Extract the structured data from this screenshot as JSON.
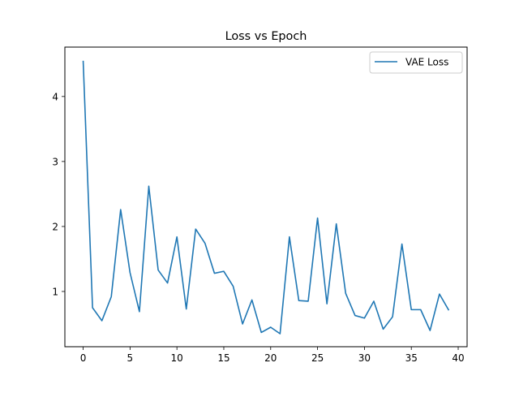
{
  "chart_data": {
    "type": "line",
    "title": "Loss vs Epoch",
    "xlabel": "",
    "ylabel": "",
    "xlim": [
      -1.95,
      40.95
    ],
    "ylim": [
      0.15,
      4.76
    ],
    "xticks": [
      0,
      5,
      10,
      15,
      20,
      25,
      30,
      35,
      40
    ],
    "yticks": [
      1,
      2,
      3,
      4
    ],
    "grid": false,
    "legend_position": "top-right",
    "series": [
      {
        "name": "VAE Loss",
        "color": "#1f77b4",
        "x": [
          0,
          1,
          2,
          3,
          4,
          5,
          6,
          7,
          8,
          9,
          10,
          11,
          12,
          13,
          14,
          15,
          16,
          17,
          18,
          19,
          20,
          21,
          22,
          23,
          24,
          25,
          26,
          27,
          28,
          29,
          30,
          31,
          32,
          33,
          34,
          35,
          36,
          37,
          38,
          39
        ],
        "y": [
          4.55,
          0.75,
          0.55,
          0.92,
          2.26,
          1.29,
          0.69,
          2.62,
          1.33,
          1.13,
          1.84,
          0.73,
          1.96,
          1.74,
          1.28,
          1.31,
          1.08,
          0.5,
          0.87,
          0.37,
          0.45,
          0.35,
          1.84,
          0.86,
          0.85,
          2.13,
          0.81,
          2.04,
          0.97,
          0.63,
          0.59,
          0.85,
          0.42,
          0.61,
          1.73,
          0.72,
          0.72,
          0.4,
          0.96,
          0.71
        ]
      }
    ]
  }
}
